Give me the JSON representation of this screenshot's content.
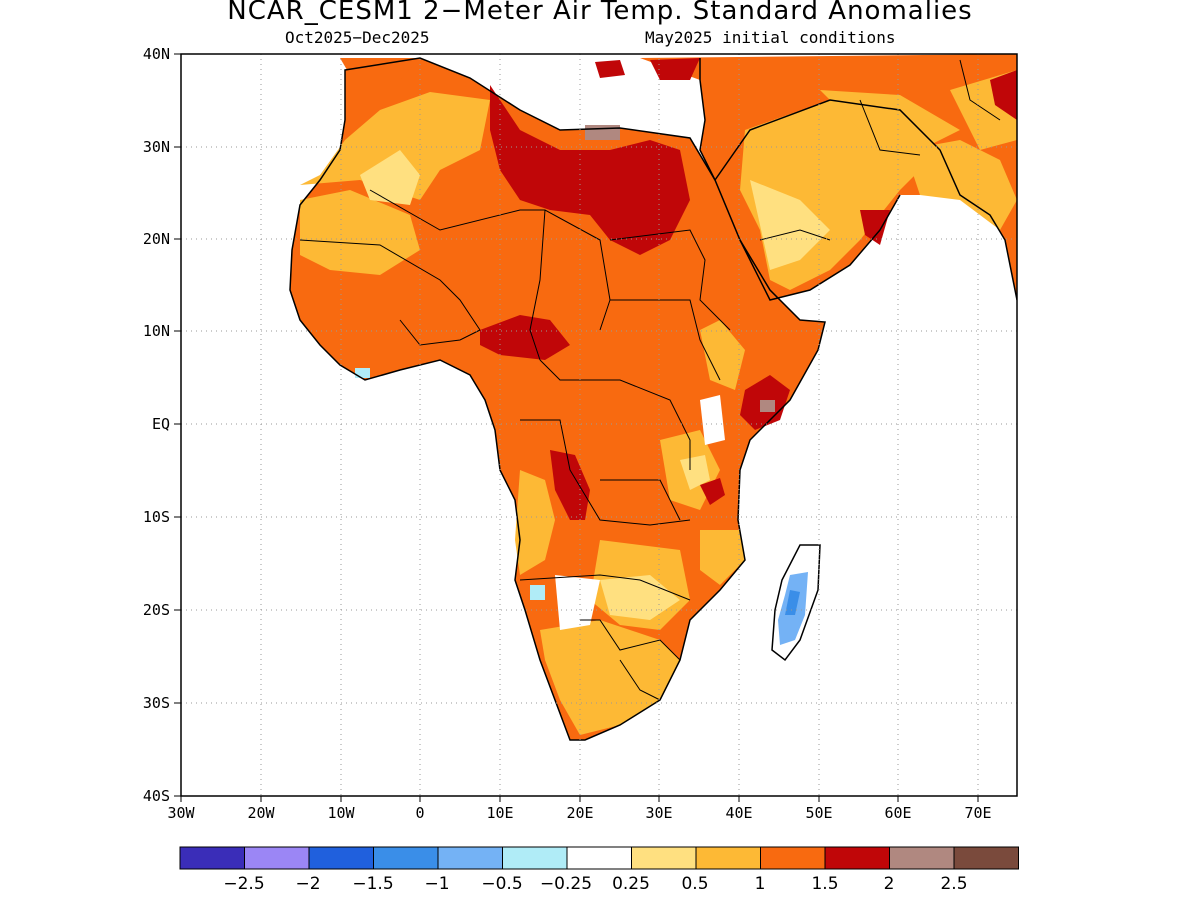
{
  "title": "NCAR_CESM1 2−Meter Air Temp. Standard Anomalies",
  "subtitle_left": "Oct2025−Dec2025",
  "subtitle_right": "May2025 initial conditions",
  "map": {
    "region": "Africa and Arabian Peninsula",
    "lon_range": [
      -30,
      75
    ],
    "lat_range": [
      -40,
      40
    ],
    "lat_ticks": [
      "40N",
      "30N",
      "20N",
      "10N",
      "EQ",
      "10S",
      "20S",
      "30S",
      "40S"
    ],
    "lon_ticks": [
      "30W",
      "20W",
      "10W",
      "0",
      "10E",
      "20E",
      "30E",
      "40E",
      "50E",
      "60E",
      "70E"
    ],
    "grid": "dotted",
    "color_scale": {
      "labels": [
        "−2.5",
        "−2",
        "−1.5",
        "−1",
        "−0.5",
        "−0.25",
        "0.25",
        "0.5",
        "1",
        "1.5",
        "2",
        "2.5"
      ],
      "colors": [
        "#3a2db8",
        "#9b86f5",
        "#2060dd",
        "#3a8ee8",
        "#74b2f5",
        "#b0ecf7",
        "#ffffff",
        "#ffe080",
        "#fdb935",
        "#f86a10",
        "#c00608",
        "#b08880",
        "#7a4a3c"
      ]
    }
  }
}
